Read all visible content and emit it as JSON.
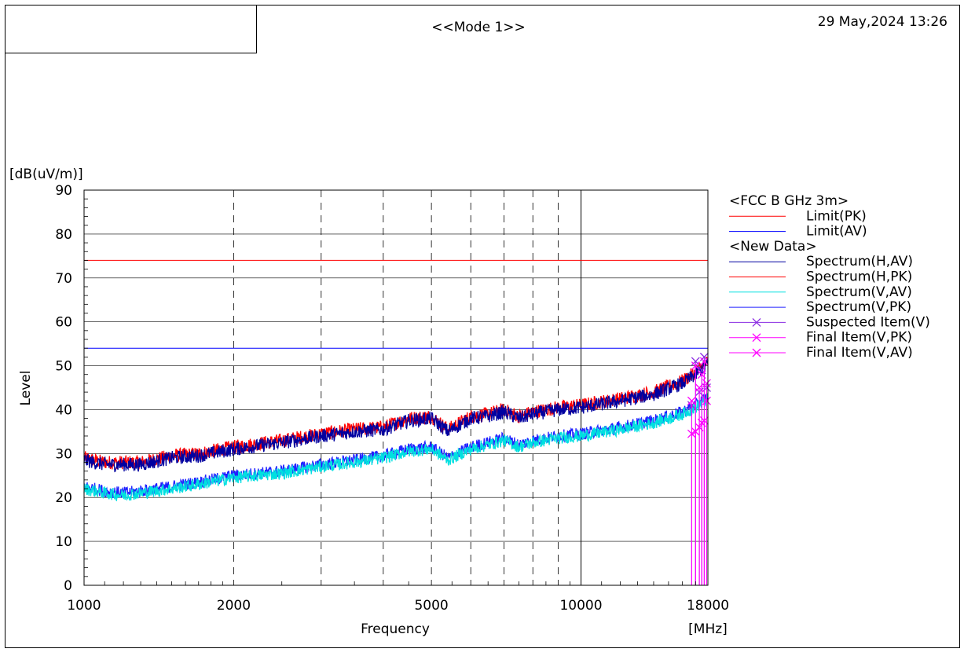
{
  "header": {
    "mode": "<<Mode 1>>",
    "datetime": "29 May,2024 13:26"
  },
  "chart_data": {
    "type": "line",
    "xlabel": "Frequency",
    "x_unit": "[MHz]",
    "ylabel": "Level",
    "y_unit": "[dB(uV/m)]",
    "x_scale": "log",
    "xlim": [
      1000,
      18000
    ],
    "ylim": [
      0,
      90
    ],
    "x_tick_labels": [
      "1000",
      "2000",
      "5000",
      "10000",
      "18000"
    ],
    "x_ticks": [
      1000,
      2000,
      5000,
      10000,
      18000
    ],
    "x_minor_grid": [
      3000,
      4000,
      6000,
      7000,
      8000,
      9000
    ],
    "y_ticks": [
      0,
      10,
      20,
      30,
      40,
      50,
      60,
      70,
      80,
      90
    ],
    "grid": true,
    "legend_position": "right",
    "legend": [
      {
        "text": "<FCC B GHz 3m>",
        "kind": "header"
      },
      {
        "text": "Limit(PK)",
        "kind": "line",
        "color": "#ff0000"
      },
      {
        "text": "Limit(AV)",
        "kind": "line",
        "color": "#0000ff"
      },
      {
        "text": "<New Data>",
        "kind": "header"
      },
      {
        "text": "Spectrum(H,AV)",
        "kind": "line",
        "color": "#0000a0"
      },
      {
        "text": "Spectrum(H,PK)",
        "kind": "line",
        "color": "#ff0000"
      },
      {
        "text": "Spectrum(V,AV)",
        "kind": "line",
        "color": "#00e0e0"
      },
      {
        "text": "Spectrum(V,PK)",
        "kind": "line",
        "color": "#2020ff"
      },
      {
        "text": "Suspected Item(V)",
        "kind": "marker",
        "color": "#8a2be2"
      },
      {
        "text": "Final Item(V,PK)",
        "kind": "marker",
        "color": "#ff00ff"
      },
      {
        "text": "Final Item(V,AV)",
        "kind": "marker",
        "color": "#ff00ff"
      }
    ],
    "limits": [
      {
        "name": "Limit(PK)",
        "value": 74,
        "color": "#ff0000"
      },
      {
        "name": "Limit(AV)",
        "value": 54,
        "color": "#0000ff"
      }
    ],
    "series": [
      {
        "name": "Spectrum(H,PK)",
        "color": "#ff0000",
        "x": [
          1000,
          1100,
          1200,
          1300,
          1500,
          1700,
          2000,
          2500,
          3000,
          3500,
          4000,
          4500,
          5000,
          5400,
          6000,
          6500,
          7000,
          7500,
          8000,
          9000,
          10000,
          12000,
          14000,
          16000,
          17000,
          18000
        ],
        "values": [
          29,
          28,
          28,
          28,
          29.5,
          30,
          31.5,
          33,
          34.5,
          35.5,
          36,
          38,
          38.5,
          35.5,
          38.5,
          39,
          40,
          38.5,
          39.5,
          40.5,
          41,
          42.5,
          44,
          46.5,
          48.5,
          51
        ]
      },
      {
        "name": "Spectrum(H,AV)",
        "color": "#0000a0",
        "x": [
          1000,
          1100,
          1200,
          1300,
          1500,
          1700,
          2000,
          2500,
          3000,
          3500,
          4000,
          4500,
          5000,
          5400,
          6000,
          6500,
          7000,
          7500,
          8000,
          9000,
          10000,
          12000,
          14000,
          16000,
          17000,
          18000
        ],
        "values": [
          28.5,
          27.5,
          27.5,
          27.5,
          29,
          29.5,
          31,
          32.5,
          34,
          35,
          35.5,
          37.5,
          38,
          35,
          38,
          38.5,
          39.5,
          38,
          39,
          40,
          40.5,
          42,
          43.5,
          46,
          48,
          50.5
        ]
      },
      {
        "name": "Spectrum(V,PK)",
        "color": "#2020ff",
        "x": [
          1000,
          1100,
          1200,
          1300,
          1500,
          1700,
          2000,
          2500,
          3000,
          3500,
          4000,
          4500,
          5000,
          5400,
          6000,
          6500,
          7000,
          7500,
          8000,
          9000,
          10000,
          12000,
          14000,
          16000,
          17000,
          18000
        ],
        "values": [
          22.5,
          21.5,
          21,
          21.5,
          22.5,
          23.5,
          25,
          26,
          27.5,
          28.5,
          29.5,
          31,
          31.5,
          29,
          31.5,
          32.5,
          33.5,
          32,
          33,
          34,
          34.5,
          36,
          37.5,
          39.5,
          41,
          43
        ]
      },
      {
        "name": "Spectrum(V,AV)",
        "color": "#00e0e0",
        "x": [
          1000,
          1100,
          1200,
          1300,
          1500,
          1700,
          2000,
          2500,
          3000,
          3500,
          4000,
          4500,
          5000,
          5400,
          6000,
          6500,
          7000,
          7500,
          8000,
          9000,
          10000,
          12000,
          14000,
          16000,
          17000,
          18000
        ],
        "values": [
          22,
          21,
          20.5,
          21,
          22,
          23,
          24.5,
          25.5,
          27,
          28,
          29,
          30.5,
          31,
          28.5,
          31,
          32,
          33,
          31.5,
          32.5,
          33.5,
          34,
          35.5,
          37,
          39,
          40.5,
          42.5
        ]
      }
    ],
    "markers": [
      {
        "name": "Suspected Item(V)",
        "color": "#8a2be2",
        "x": [
          16700,
          17000,
          17300,
          17500,
          17700,
          17900
        ],
        "values": [
          41,
          51,
          44,
          49,
          52,
          45
        ]
      },
      {
        "name": "Final Item(V,PK)",
        "color": "#ff00ff",
        "x": [
          16700,
          17000,
          17300,
          17500,
          17700,
          17900
        ],
        "values": [
          42,
          50,
          45,
          48,
          51,
          46
        ]
      },
      {
        "name": "Final Item(V,AV)",
        "color": "#ff00ff",
        "x": [
          16700,
          17000,
          17300,
          17500,
          17700,
          17900
        ],
        "values": [
          34.5,
          35,
          36,
          37,
          37.5,
          42
        ]
      }
    ]
  }
}
